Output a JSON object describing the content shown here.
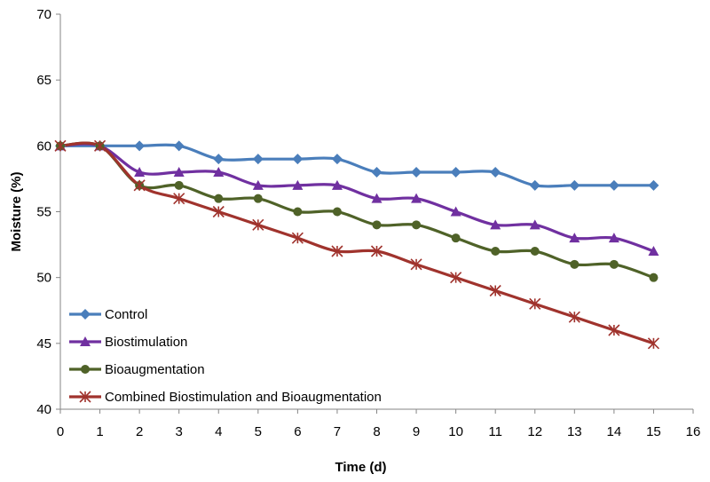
{
  "chart_data": {
    "type": "line",
    "title": "",
    "xlabel": "Time (d)",
    "ylabel": "Moisture (%)",
    "xlim": [
      0,
      16
    ],
    "ylim": [
      40,
      70
    ],
    "xticks": [
      0,
      1,
      2,
      3,
      4,
      5,
      6,
      7,
      8,
      9,
      10,
      11,
      12,
      13,
      14,
      15,
      16
    ],
    "yticks": [
      40,
      45,
      50,
      55,
      60,
      65,
      70
    ],
    "grid": false,
    "legend_position": "bottom-left",
    "x": [
      0,
      1,
      2,
      3,
      4,
      5,
      6,
      7,
      8,
      9,
      10,
      11,
      12,
      13,
      14,
      15
    ],
    "series": [
      {
        "name": "Control",
        "color": "#4a7ebb",
        "marker": "diamond",
        "values": [
          60,
          60,
          60,
          60,
          59,
          59,
          59,
          59,
          58,
          58,
          58,
          58,
          57,
          57,
          57,
          57
        ]
      },
      {
        "name": "Biostimulation",
        "color": "#7030a0",
        "marker": "triangle",
        "values": [
          60,
          60,
          58,
          58,
          58,
          57,
          57,
          57,
          56,
          56,
          55,
          54,
          54,
          53,
          53,
          52
        ]
      },
      {
        "name": "Bioaugmentation",
        "color": "#4f6228",
        "marker": "circle",
        "values": [
          60,
          60,
          57,
          57,
          56,
          56,
          55,
          55,
          54,
          54,
          53,
          52,
          52,
          51,
          51,
          50
        ]
      },
      {
        "name": "Combined Biostimulation and Bioaugmentation",
        "color": "#a0332d",
        "marker": "star",
        "values": [
          60,
          60,
          57,
          56,
          55,
          54,
          53,
          52,
          52,
          51,
          50,
          49,
          48,
          47,
          46,
          45
        ]
      }
    ]
  }
}
